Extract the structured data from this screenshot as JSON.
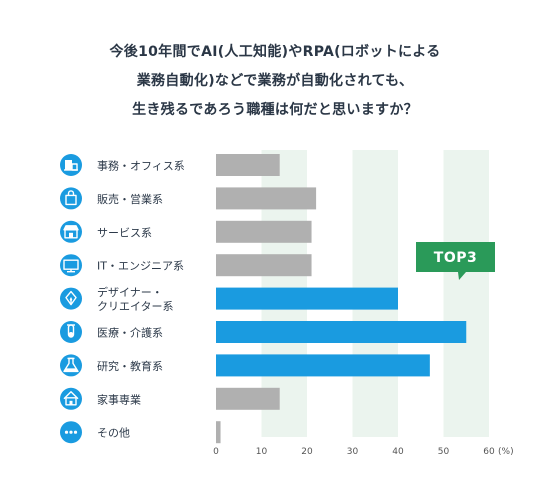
{
  "title_lines": [
    "今後10年間でAI(人工知能)やRPA(ロボットによる",
    "業務自動化)などで業務が自動化されても、",
    "生き残るであろう職種は何だと思いますか？"
  ],
  "colors": {
    "gray_bar": "#b0b0b0",
    "blue_bar": "#1a9be0",
    "icon_circle": "#1a9be0",
    "badge": "#2a9a59",
    "band": "#ebf4ee",
    "text": "#2d3a4a"
  },
  "chart_data": {
    "type": "bar",
    "orientation": "horizontal",
    "categories": [
      [
        "事務・オフィス系"
      ],
      [
        "販売・営業系"
      ],
      [
        "サービス系"
      ],
      [
        "IT・エンジニア系"
      ],
      [
        "デザイナー・",
        "クリエイター系"
      ],
      [
        "医療・介護系"
      ],
      [
        "研究・教育系"
      ],
      [
        "家事専業"
      ],
      [
        "その他"
      ]
    ],
    "values": [
      14,
      22,
      21,
      21,
      40,
      55,
      47,
      14,
      1
    ],
    "highlighted": [
      false,
      false,
      false,
      false,
      true,
      true,
      true,
      false,
      false
    ],
    "icons": [
      "office-icon",
      "shopping-bag-icon",
      "store-icon",
      "monitor-icon",
      "pen-icon",
      "test-tube-icon",
      "flask-icon",
      "house-icon",
      "more-dots-icon"
    ],
    "xlim": [
      0,
      60
    ],
    "xticks": [
      0,
      10,
      20,
      30,
      40,
      50,
      60
    ],
    "xunit": "(%)",
    "grid_bands": true,
    "badge_text": "TOP3"
  }
}
